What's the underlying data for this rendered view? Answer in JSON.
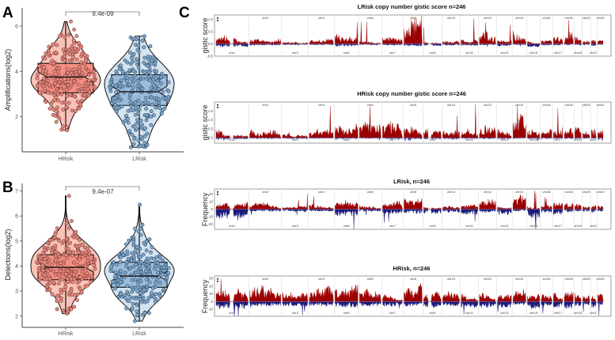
{
  "panel_labels": {
    "a": "A",
    "b": "B",
    "c": "C"
  },
  "colors": {
    "hrisk_violin": "#f9c3b9",
    "hrisk_box": "#f48a7d",
    "hrisk_point": "#e58b80",
    "lrisk_violin": "#d3e3f0",
    "lrisk_box": "#92b8d8",
    "lrisk_point": "#82a8ca",
    "amplification": "#9b0000",
    "deletion": "#1a1a7a"
  },
  "chart_data": [
    {
      "type": "violin",
      "panel": "A",
      "ylabel": "Amplifications(log2)",
      "categories": [
        "HRisk",
        "LRisk"
      ],
      "yticks": [
        2,
        4,
        6
      ],
      "ylim": [
        0.45,
        6.8
      ],
      "pvalue": "9.4e-09",
      "n": 246,
      "groups": [
        {
          "name": "HRisk",
          "min": 1.4,
          "q1": 3.05,
          "median": 3.75,
          "q3": 4.35,
          "max": 6.2
        },
        {
          "name": "LRisk",
          "min": 0.65,
          "q1": 2.5,
          "median": 3.1,
          "q3": 3.85,
          "max": 5.55
        }
      ]
    },
    {
      "type": "violin",
      "panel": "B",
      "ylabel": "Delections(log2)",
      "categories": [
        "HRisk",
        "LRisk"
      ],
      "yticks": [
        2,
        3,
        4,
        5,
        6,
        7
      ],
      "ylim": [
        1.55,
        7.3
      ],
      "pvalue": "9.4e-07",
      "n": 246,
      "groups": [
        {
          "name": "HRisk",
          "min": 2.1,
          "q1": 3.45,
          "median": 3.95,
          "q3": 4.45,
          "max": 6.8
        },
        {
          "name": "LRisk",
          "min": 1.8,
          "q1": 3.15,
          "median": 3.6,
          "q3": 4.15,
          "max": 6.45
        }
      ]
    },
    {
      "type": "area",
      "panel": "C1",
      "title": "LRisk copy number gistic score n=246",
      "ylabel": "gistic score",
      "yticks": [
        "1.0",
        "0.5",
        "0.0",
        "-0.5"
      ],
      "ylim": [
        -0.5,
        1.17
      ],
      "amp_level": [
        0.2,
        0.15,
        0.05,
        0.12,
        0.25,
        0.1,
        0.2,
        0.4,
        0.05,
        0.1,
        0.15,
        0.3,
        0.15,
        0.35,
        0.08,
        0.1,
        0.2,
        0.25,
        0.3,
        0.1,
        0.1,
        0.15
      ],
      "del_level": [
        0.08,
        0.04,
        0.03,
        0.03,
        0.06,
        0.03,
        0.04,
        0.06,
        0.05,
        0.04,
        0.05,
        0.03,
        0.06,
        0.03,
        0.08,
        0.04,
        0.04,
        0.03,
        0.03,
        0.03,
        0.05,
        0.03
      ],
      "peak": 1.05
    },
    {
      "type": "area",
      "panel": "C2",
      "title": "HRisk copy number gistic score n=246",
      "ylabel": "gistic score",
      "yticks": [
        "1.5",
        "1.0",
        "0.5",
        "0.0"
      ],
      "ylim": [
        -0.3,
        2.0
      ],
      "amp_level": [
        0.35,
        0.45,
        0.3,
        0.35,
        0.45,
        0.4,
        0.45,
        0.6,
        0.35,
        0.3,
        0.35,
        0.45,
        0.35,
        0.7,
        0.3,
        0.3,
        0.35,
        0.45,
        0.45,
        0.3,
        0.35,
        0.35
      ],
      "del_level": [
        0.05,
        0.04,
        0.04,
        0.03,
        0.04,
        0.03,
        0.04,
        0.05,
        0.05,
        0.04,
        0.04,
        0.04,
        0.04,
        0.03,
        0.04,
        0.04,
        0.04,
        0.04,
        0.04,
        0.03,
        0.04,
        0.04
      ],
      "peak": 1.9
    },
    {
      "type": "area",
      "panel": "C3",
      "title": "LRisk, n=246",
      "ylabel": "Frequency",
      "yticks": [
        "20",
        "10",
        "0",
        "-10",
        "-20"
      ],
      "ylim": [
        -27,
        27
      ],
      "amp_level": [
        4,
        5,
        2,
        4,
        7,
        4,
        5,
        10,
        2,
        3,
        5,
        7,
        3,
        10,
        3,
        3,
        6,
        7,
        8,
        3,
        3,
        4
      ],
      "del_level": [
        8,
        2,
        2,
        2,
        6,
        2,
        4,
        4,
        4,
        3,
        5,
        3,
        5,
        2,
        8,
        3,
        5,
        3,
        2,
        2,
        3,
        2
      ],
      "peak": 25
    },
    {
      "type": "area",
      "panel": "C4",
      "title": "HRisk, n=246",
      "ylabel": "Frequency",
      "yticks": [
        "30",
        "20",
        "10",
        "0",
        "-10"
      ],
      "ylim": [
        -19,
        33
      ],
      "amp_level": [
        9,
        11,
        8,
        8,
        10,
        9,
        10,
        13,
        8,
        8,
        8,
        10,
        7,
        12,
        7,
        7,
        9,
        10,
        10,
        7,
        7,
        8
      ],
      "del_level": [
        6,
        4,
        4,
        4,
        5,
        4,
        4,
        4,
        5,
        4,
        5,
        5,
        5,
        3,
        6,
        4,
        5,
        6,
        4,
        3,
        5,
        4
      ],
      "peak": 31
    }
  ],
  "chromosomes": [
    "chr1",
    "chr2",
    "chr3",
    "chr4",
    "chr5",
    "chr6",
    "chr7",
    "chr8",
    "chr9",
    "chr10",
    "chr11",
    "chr12",
    "chr13",
    "chr14",
    "chr15",
    "chr16",
    "chr17",
    "chr18",
    "chr19",
    "chr20",
    "chr21",
    "chr22"
  ]
}
